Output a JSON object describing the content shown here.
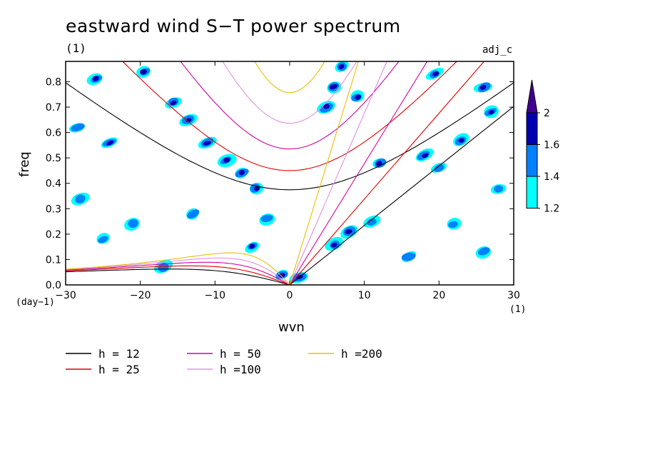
{
  "chart_data": {
    "type": "heatmap",
    "title": "eastward wind S−T power spectrum",
    "subtitle": "(1)",
    "annotation": "adj_c",
    "xlabel": "wvn",
    "ylabel": "freq",
    "x_unit": "(1)",
    "y_unit": "(day−1)",
    "xlim": [
      -30,
      30
    ],
    "ylim": [
      0,
      0.88
    ],
    "x_ticks": [
      -30,
      -20,
      -10,
      0,
      10,
      20,
      30
    ],
    "x_tick_labels": [
      "−30",
      "−20",
      "−10",
      "0",
      "10",
      "20",
      "30"
    ],
    "y_ticks": [
      0,
      0.1,
      0.2,
      0.3,
      0.4,
      0.5,
      0.6,
      0.7,
      0.8
    ],
    "y_tick_labels": [
      "0.0",
      "0.1",
      "0.2",
      "0.3",
      "0.4",
      "0.5",
      "0.6",
      "0.7",
      "0.8"
    ],
    "colorbar": {
      "levels": [
        1.2,
        1.4,
        1.6,
        2
      ],
      "level_labels": [
        "1.2",
        "1.4",
        "1.6",
        "2"
      ],
      "colors": [
        "#00ffff",
        "#0080ff",
        "#0000b0",
        "#400090"
      ]
    },
    "series": [
      {
        "name": "h = 12",
        "h": 12,
        "color": "#000000"
      },
      {
        "name": "h = 25",
        "h": 25,
        "color": "#e00000"
      },
      {
        "name": "h = 50",
        "h": 50,
        "color": "#d000a0"
      },
      {
        "name": "h =100",
        "h": 100,
        "color": "#e090e0"
      },
      {
        "name": "h =200",
        "h": 200,
        "color": "#e8c000"
      }
    ],
    "shaded_regions": [
      {
        "x": -26,
        "y": 0.81,
        "level": 2
      },
      {
        "x": -19.5,
        "y": 0.84,
        "level": 2
      },
      {
        "x": -15.5,
        "y": 0.72,
        "level": 2
      },
      {
        "x": -13.5,
        "y": 0.65,
        "level": 2
      },
      {
        "x": -11,
        "y": 0.56,
        "level": 2
      },
      {
        "x": -8.5,
        "y": 0.49,
        "level": 2
      },
      {
        "x": -6.5,
        "y": 0.44,
        "level": 2
      },
      {
        "x": -4.5,
        "y": 0.38,
        "level": 3
      },
      {
        "x": -5,
        "y": 0.15,
        "level": 2
      },
      {
        "x": -3,
        "y": 0.26,
        "level": 1
      },
      {
        "x": -1,
        "y": 0.04,
        "level": 3
      },
      {
        "x": 1.2,
        "y": 0.03,
        "level": 3
      },
      {
        "x": 5,
        "y": 0.7,
        "level": 3
      },
      {
        "x": 6,
        "y": 0.78,
        "level": 2
      },
      {
        "x": 7,
        "y": 0.86,
        "level": 2
      },
      {
        "x": 9,
        "y": 0.74,
        "level": 2
      },
      {
        "x": 6,
        "y": 0.16,
        "level": 2
      },
      {
        "x": 8,
        "y": 0.21,
        "level": 2
      },
      {
        "x": 11,
        "y": 0.25,
        "level": 1
      },
      {
        "x": 18,
        "y": 0.51,
        "level": 2
      },
      {
        "x": 20,
        "y": 0.46,
        "level": 1
      },
      {
        "x": 23,
        "y": 0.57,
        "level": 2
      },
      {
        "x": 26,
        "y": 0.78,
        "level": 2
      },
      {
        "x": 27,
        "y": 0.68,
        "level": 2
      },
      {
        "x": 19.5,
        "y": 0.83,
        "level": 2
      },
      {
        "x": -28,
        "y": 0.34,
        "level": 1
      },
      {
        "x": -21,
        "y": 0.24,
        "level": 1
      },
      {
        "x": -25,
        "y": 0.18,
        "level": 1
      },
      {
        "x": -13,
        "y": 0.28,
        "level": 1
      },
      {
        "x": -17,
        "y": 0.07,
        "level": 1
      },
      {
        "x": 26,
        "y": 0.13,
        "level": 1
      },
      {
        "x": 16,
        "y": 0.11,
        "level": 1
      },
      {
        "x": 22,
        "y": 0.24,
        "level": 1
      },
      {
        "x": -24,
        "y": 0.56,
        "level": 2
      },
      {
        "x": -28.5,
        "y": 0.62,
        "level": 1
      },
      {
        "x": 12,
        "y": 0.48,
        "level": 2
      },
      {
        "x": 28,
        "y": 0.38,
        "level": 1
      }
    ]
  },
  "legend": {
    "items": [
      {
        "label": "h = 12"
      },
      {
        "label": "h = 25"
      },
      {
        "label": "h = 50"
      },
      {
        "label": "h =100"
      },
      {
        "label": "h =200"
      }
    ]
  }
}
